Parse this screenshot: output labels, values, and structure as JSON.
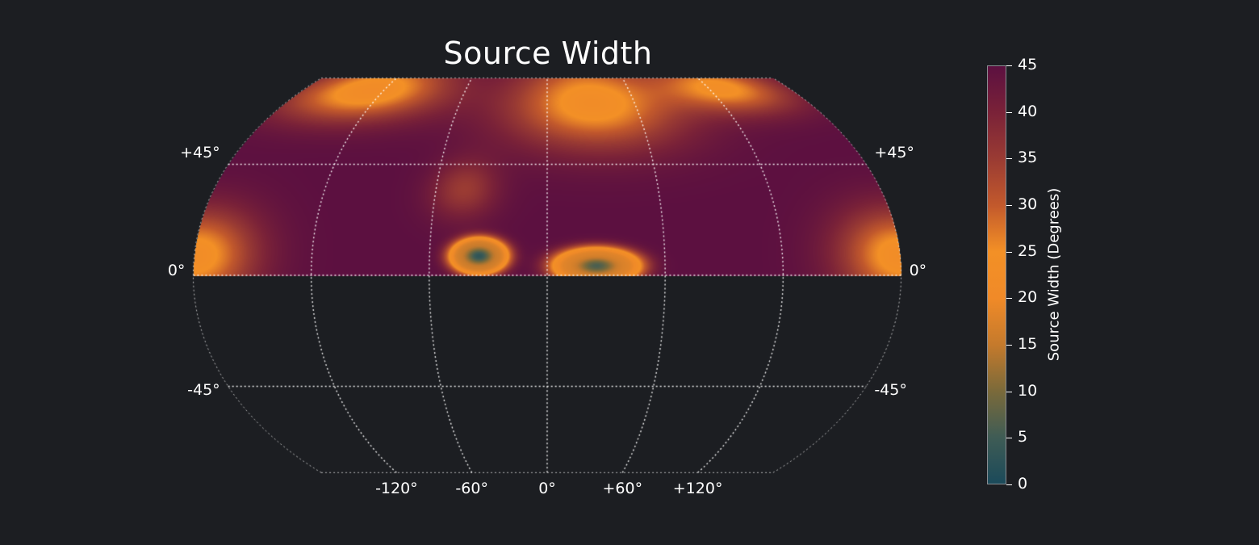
{
  "chart_data": {
    "type": "heatmap",
    "projection": "kavrayskiy-vii",
    "title": "Source Width",
    "colorbar": {
      "label": "Source Width (Degrees)",
      "range": [
        0,
        45
      ],
      "ticks": [
        "0",
        "5",
        "10",
        "15",
        "20",
        "25",
        "30",
        "35",
        "40",
        "45"
      ],
      "colors": [
        "#1b4a5a",
        "#3f5c55",
        "#7b6a3a",
        "#c57a2c",
        "#f08a28",
        "#f39026",
        "#c2592c",
        "#9a3b33",
        "#7a2238",
        "#5c1040"
      ]
    },
    "lat_ticks": [
      {
        "value": 45,
        "label": "+45°"
      },
      {
        "value": 0,
        "label": "0°"
      },
      {
        "value": -45,
        "label": "-45°"
      }
    ],
    "lon_ticks": [
      {
        "value": -120,
        "label": "-120°"
      },
      {
        "value": -60,
        "label": "-60°"
      },
      {
        "value": 0,
        "label": "0°"
      },
      {
        "value": 60,
        "label": "+60°"
      },
      {
        "value": 120,
        "label": "+120°"
      }
    ],
    "lat_range": [
      -80,
      80
    ],
    "data_lat_range": [
      0,
      80
    ],
    "field": {
      "base": 45,
      "features": [
        {
          "lon": -130,
          "lat": 75,
          "value": 21,
          "sigma_lon": 55,
          "sigma_lat": 12
        },
        {
          "lon": 30,
          "lat": 70,
          "value": 22,
          "sigma_lon": 55,
          "sigma_lat": 18
        },
        {
          "lon": 130,
          "lat": 76,
          "value": 24,
          "sigma_lon": 45,
          "sigma_lat": 10
        },
        {
          "lon": -45,
          "lat": 35,
          "value": 35,
          "sigma_lon": 18,
          "sigma_lat": 12
        },
        {
          "lon": -35,
          "lat": 8,
          "value": 3,
          "sigma_lon": 12,
          "sigma_lat": 6,
          "ring": true
        },
        {
          "lon": 25,
          "lat": 4,
          "value": 6,
          "sigma_lon": 18,
          "sigma_lat": 6,
          "ring": true
        },
        {
          "lon": -180,
          "lat": 8,
          "value": 22,
          "sigma_lon": 30,
          "sigma_lat": 18
        },
        {
          "lon": 180,
          "lat": 8,
          "value": 22,
          "sigma_lon": 30,
          "sigma_lat": 18
        }
      ]
    },
    "grid": true
  }
}
